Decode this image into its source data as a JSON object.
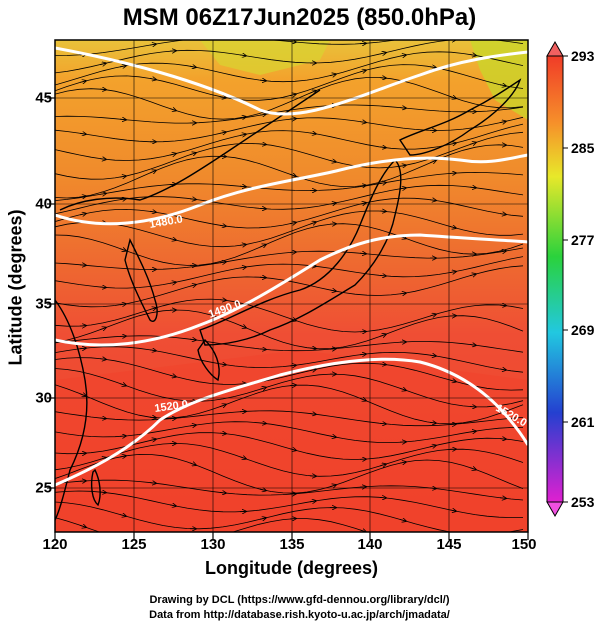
{
  "title": "MSM 06Z17Jun2025 (850.0hPa)",
  "map": {
    "xlabel": "Longitude (degrees)",
    "ylabel": "Latitude  (degrees)",
    "lon_range": [
      120,
      150
    ],
    "lat_range": [
      23,
      48
    ],
    "x_ticks": [
      "120",
      "125",
      "130",
      "135",
      "140",
      "145",
      "150"
    ],
    "y_ticks": [
      "25",
      "30",
      "35",
      "40",
      "45"
    ],
    "contour_labels": [
      "1490.0",
      "1520.0",
      "1520.0",
      "1480.0"
    ],
    "colorbar_ticks": [
      "293",
      "285",
      "277",
      "269",
      "261",
      "253"
    ],
    "colorbar_range": [
      253,
      293
    ],
    "colors": {
      "warm": "#e8452a",
      "hot": "#f0401e",
      "mid": "#f59a2a",
      "cool": "#c8d82a"
    }
  },
  "credits": {
    "line1": "Drawing by DCL (https://www.gfd-dennou.org/library/dcl/)",
    "line2": "Data from http://database.rish.kyoto-u.ac.jp/arch/jmadata/"
  }
}
